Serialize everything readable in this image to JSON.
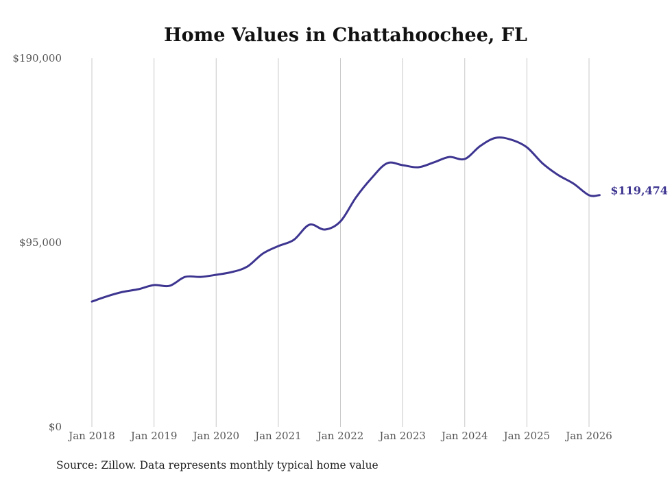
{
  "chart_data": {
    "type": "line",
    "title": "Home Values in Chattahoochee, FL",
    "xlabel": "",
    "ylabel": "",
    "ylim": [
      0,
      190000
    ],
    "y_ticks": [
      {
        "value": 190000,
        "label": "$190,000"
      },
      {
        "value": 95000,
        "label": "$95,000"
      },
      {
        "value": 0,
        "label": "$0"
      }
    ],
    "x_ticks": [
      {
        "value": 2018.0,
        "label": "Jan 2018"
      },
      {
        "value": 2019.0,
        "label": "Jan 2019"
      },
      {
        "value": 2020.0,
        "label": "Jan 2020"
      },
      {
        "value": 2021.0,
        "label": "Jan 2021"
      },
      {
        "value": 2022.0,
        "label": "Jan 2022"
      },
      {
        "value": 2023.0,
        "label": "Jan 2023"
      },
      {
        "value": 2024.0,
        "label": "Jan 2024"
      },
      {
        "value": 2025.0,
        "label": "Jan 2025"
      },
      {
        "value": 2026.0,
        "label": "Jan 2026"
      }
    ],
    "xlim": [
      2018.0,
      2026.17
    ],
    "grid": "vertical",
    "line_color": "#3d3590",
    "series": [
      {
        "name": "Typical home value",
        "x": [
          2018.0,
          2018.25,
          2018.5,
          2018.75,
          2019.0,
          2019.25,
          2019.5,
          2019.75,
          2020.0,
          2020.25,
          2020.5,
          2020.75,
          2021.0,
          2021.25,
          2021.5,
          2021.75,
          2022.0,
          2022.25,
          2022.5,
          2022.75,
          2023.0,
          2023.25,
          2023.5,
          2023.75,
          2024.0,
          2024.25,
          2024.5,
          2024.75,
          2025.0,
          2025.25,
          2025.5,
          2025.75,
          2026.0,
          2026.17
        ],
        "values": [
          64600,
          67400,
          69600,
          71000,
          73100,
          72700,
          77300,
          77300,
          78400,
          79800,
          82600,
          89300,
          93200,
          96400,
          104200,
          101700,
          105900,
          118300,
          128200,
          135900,
          134900,
          133800,
          136300,
          139100,
          138100,
          144800,
          149000,
          148000,
          144100,
          135900,
          129900,
          125400,
          119400,
          119474
        ]
      }
    ],
    "end_label": "$119,474",
    "source": "Source: Zillow. Data represents monthly typical home value"
  }
}
